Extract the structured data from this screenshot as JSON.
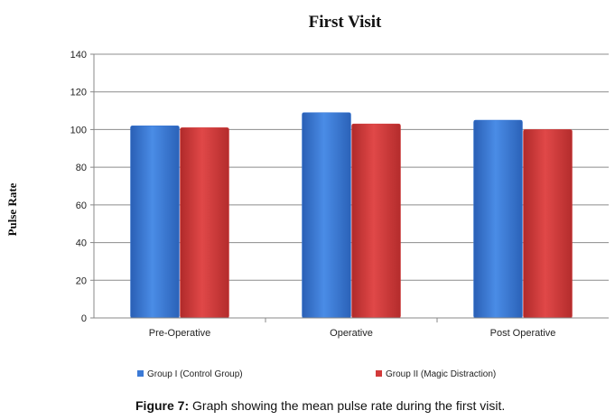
{
  "chart_data": {
    "type": "bar",
    "title": "First Visit",
    "ylabel": "Pulse Rate",
    "xlabel": "",
    "categories": [
      "Pre-Operative",
      "Operative",
      "Post Operative"
    ],
    "series": [
      {
        "name": "Group I (Control Group)",
        "values": [
          102,
          109,
          105
        ],
        "color": "#3c7ad6"
      },
      {
        "name": "Group II (Magic Distraction)",
        "values": [
          101,
          103,
          100
        ],
        "color": "#d23a3a"
      }
    ],
    "ylim": [
      0,
      140
    ],
    "yticks": [
      0,
      20,
      40,
      60,
      80,
      100,
      120,
      140
    ],
    "grid": true,
    "legend": "bottom"
  },
  "caption": {
    "label": "Figure 7:",
    "text": " Graph showing the mean pulse rate during the first visit."
  }
}
